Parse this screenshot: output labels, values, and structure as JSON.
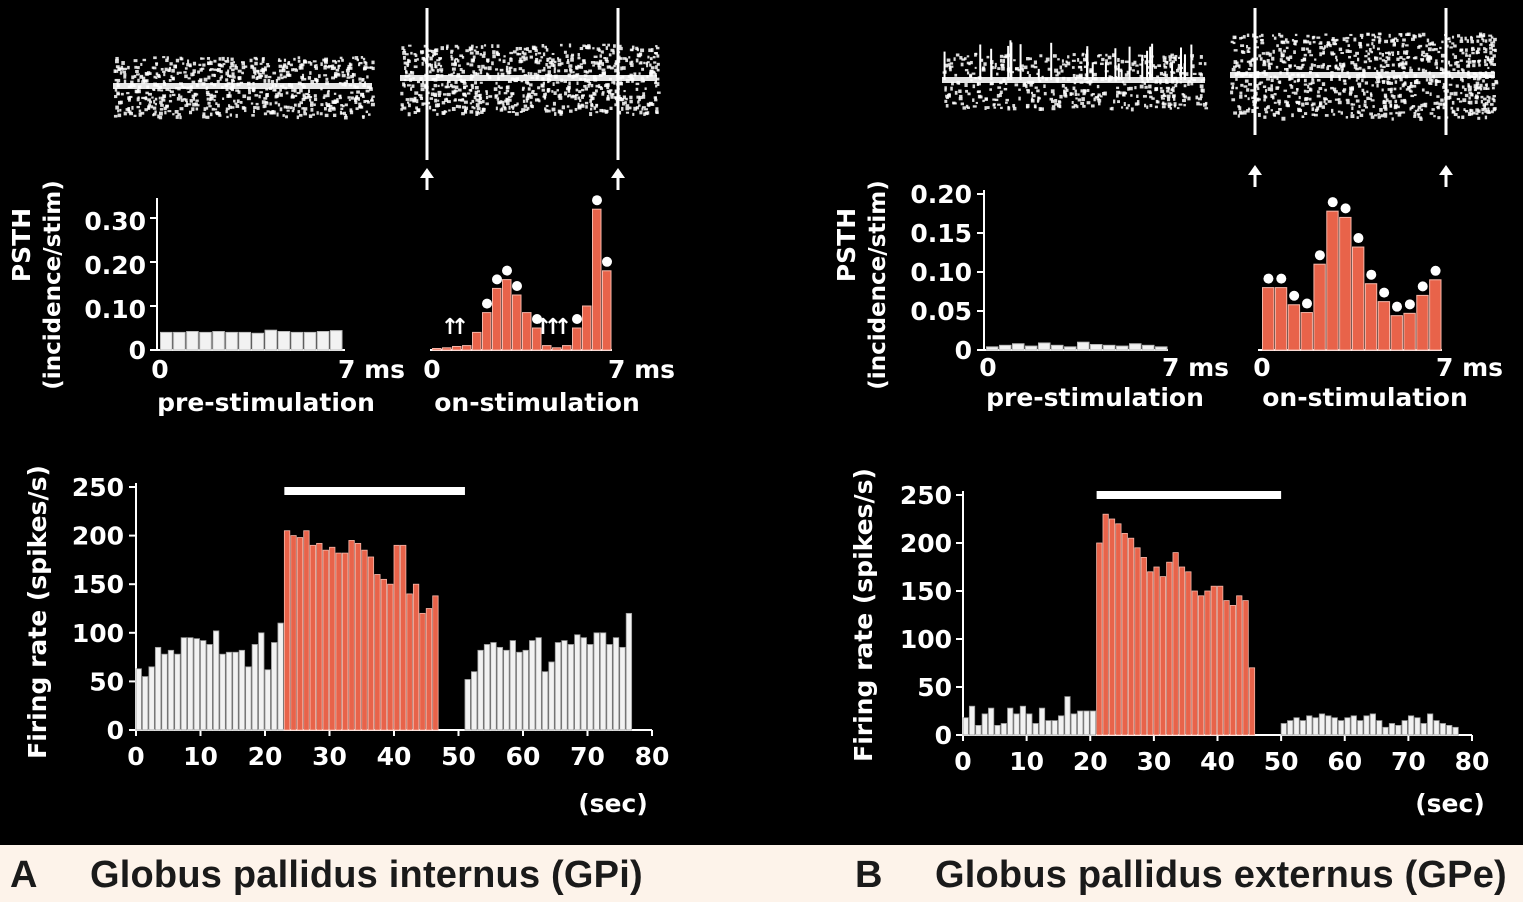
{
  "panels": {
    "A": {
      "letter": "A",
      "caption": "Globus pallidus internus (GPi)",
      "psth_ylabel": "PSTH",
      "psth_ylabel2": "(incidence/stim)",
      "psth_yticks": [
        "0",
        "0.10",
        "0.20",
        "0.30"
      ],
      "pre_label": "pre-stimulation",
      "on_label": "on-stimulation",
      "pre_x0": "0",
      "pre_x1": "7 ms",
      "on_x0": "0",
      "on_x1": "7 ms",
      "rate_ylabel": "Firing rate (spikes/s)",
      "rate_yticks": [
        "0",
        "50",
        "100",
        "150",
        "200",
        "250"
      ],
      "rate_xticks": [
        "0",
        "10",
        "20",
        "30",
        "40",
        "50",
        "60",
        "70",
        "80"
      ],
      "rate_xunit": "(sec)"
    },
    "B": {
      "letter": "B",
      "caption": "Globus pallidus externus (GPe)",
      "psth_ylabel": "PSTH",
      "psth_ylabel2": "(incidence/stim)",
      "psth_yticks": [
        "0",
        "0.05",
        "0.10",
        "0.15",
        "0.20"
      ],
      "pre_label": "pre-stimulation",
      "on_label": "on-stimulation",
      "pre_x0": "0",
      "pre_x1": "7 ms",
      "on_x0": "0",
      "on_x1": "7 ms",
      "rate_ylabel": "Firing rate (spikes/s)",
      "rate_yticks": [
        "0",
        "50",
        "100",
        "150",
        "200",
        "250"
      ],
      "rate_xticks": [
        "0",
        "10",
        "20",
        "30",
        "40",
        "50",
        "60",
        "70",
        "80"
      ],
      "rate_xunit": "(sec)"
    }
  },
  "colors": {
    "background": "#000000",
    "stim_bar": "#e8634a",
    "base_bar": "#f2f2f2",
    "axis": "#ffffff",
    "caption_bg": "#fdf3ea"
  },
  "chart_data": [
    {
      "id": "A-psth-pre",
      "type": "bar",
      "xlabel": "pre-stimulation",
      "ylabel": "PSTH (incidence/stim)",
      "xlim": [
        0,
        7
      ],
      "ylim": [
        0,
        0.33
      ],
      "values": [
        0.04,
        0.04,
        0.042,
        0.04,
        0.042,
        0.04,
        0.04,
        0.038,
        0.045,
        0.042,
        0.04,
        0.04,
        0.042,
        0.044
      ]
    },
    {
      "id": "A-psth-on",
      "type": "bar",
      "xlabel": "on-stimulation",
      "ylabel": "PSTH (incidence/stim)",
      "xlim": [
        0,
        7
      ],
      "ylim": [
        0,
        0.33
      ],
      "values": [
        0.0,
        0.005,
        0.008,
        0.01,
        0.04,
        0.085,
        0.14,
        0.16,
        0.125,
        0.085,
        0.05,
        0.01,
        0.005,
        0.01,
        0.05,
        0.1,
        0.32,
        0.18
      ],
      "significant": [
        false,
        false,
        false,
        false,
        false,
        true,
        true,
        true,
        true,
        false,
        true,
        false,
        false,
        false,
        true,
        false,
        true,
        true
      ],
      "annotations": [
        "↑",
        "↑",
        "↑",
        "↑",
        "↑"
      ]
    },
    {
      "id": "A-rate",
      "type": "bar",
      "xlabel": "(sec)",
      "ylabel": "Firing rate (spikes/s)",
      "xlim": [
        0,
        80
      ],
      "ylim": [
        0,
        250
      ],
      "stimulation_interval": [
        23,
        51
      ],
      "series": [
        {
          "name": "baseline",
          "x_start": 0,
          "values": [
            63,
            55,
            65,
            85,
            78,
            82,
            78,
            95,
            95,
            94,
            92,
            88,
            102,
            78,
            80,
            80,
            82,
            65,
            88,
            100,
            62,
            90,
            110
          ]
        },
        {
          "name": "stimulation",
          "x_start": 23,
          "values": [
            205,
            200,
            198,
            205,
            190,
            192,
            185,
            188,
            182,
            182,
            195,
            192,
            185,
            178,
            160,
            155,
            150,
            190,
            190,
            140,
            150,
            120,
            125,
            138
          ]
        },
        {
          "name": "post",
          "x_start": 51,
          "values": [
            52,
            60,
            82,
            88,
            90,
            85,
            82,
            92,
            80,
            82,
            92,
            95,
            60,
            70,
            90,
            92,
            88,
            98,
            95,
            88,
            100,
            100,
            88,
            95,
            85,
            120
          ]
        }
      ]
    },
    {
      "id": "B-psth-pre",
      "type": "bar",
      "xlabel": "pre-stimulation",
      "ylabel": "PSTH (incidence/stim)",
      "xlim": [
        0,
        7
      ],
      "ylim": [
        0,
        0.2
      ],
      "values": [
        0.004,
        0.006,
        0.008,
        0.005,
        0.009,
        0.006,
        0.004,
        0.01,
        0.007,
        0.006,
        0.005,
        0.008,
        0.006,
        0.004
      ]
    },
    {
      "id": "B-psth-on",
      "type": "bar",
      "xlabel": "on-stimulation",
      "ylabel": "PSTH (incidence/stim)",
      "xlim": [
        0,
        7
      ],
      "ylim": [
        0,
        0.2
      ],
      "values": [
        0.08,
        0.08,
        0.058,
        0.048,
        0.11,
        0.178,
        0.17,
        0.132,
        0.085,
        0.062,
        0.044,
        0.047,
        0.07,
        0.09
      ],
      "significant": [
        true,
        true,
        true,
        true,
        true,
        true,
        true,
        true,
        true,
        true,
        true,
        true,
        true,
        true
      ]
    },
    {
      "id": "B-rate",
      "type": "bar",
      "xlabel": "(sec)",
      "ylabel": "Firing rate (spikes/s)",
      "xlim": [
        0,
        80
      ],
      "ylim": [
        0,
        250
      ],
      "stimulation_interval": [
        21,
        50
      ],
      "series": [
        {
          "name": "baseline",
          "x_start": 0,
          "values": [
            18,
            30,
            10,
            22,
            28,
            10,
            12,
            28,
            22,
            30,
            22,
            12,
            28,
            15,
            15,
            20,
            40,
            22,
            25,
            25,
            25
          ]
        },
        {
          "name": "stimulation",
          "x_start": 21,
          "values": [
            200,
            230,
            225,
            220,
            210,
            205,
            195,
            185,
            170,
            175,
            165,
            180,
            190,
            175,
            170,
            150,
            145,
            150,
            155,
            155,
            140,
            135,
            145,
            140,
            70
          ]
        },
        {
          "name": "post",
          "x_start": 50,
          "values": [
            12,
            15,
            18,
            15,
            20,
            18,
            22,
            20,
            18,
            15,
            18,
            20,
            15,
            20,
            22,
            15,
            8,
            12,
            10,
            15,
            20,
            18,
            12,
            22,
            15,
            12,
            10,
            8
          ]
        }
      ]
    }
  ]
}
